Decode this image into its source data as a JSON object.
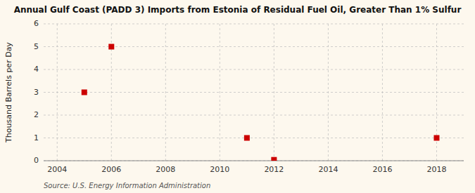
{
  "chart_data": {
    "type": "scatter",
    "title": "Annual Gulf Coast (PADD 3) Imports from Estonia of Residual Fuel Oil, Greater Than 1% Sulfur",
    "y_label": "Thousand Barrels per Day",
    "source": "Source: U.S. Energy Information Administration",
    "x": [
      2005,
      2006,
      2011,
      2012,
      2018
    ],
    "values": [
      3,
      5,
      1,
      0.04,
      1
    ],
    "color": "#cc0000",
    "marker": "square",
    "xlim": [
      2003.5,
      2019.0
    ],
    "ylim": [
      0,
      6
    ],
    "xticks": [
      2004,
      2006,
      2008,
      2010,
      2012,
      2014,
      2016,
      2018
    ],
    "yticks": [
      0,
      1,
      2,
      3,
      4,
      5,
      6
    ],
    "grid": true
  }
}
